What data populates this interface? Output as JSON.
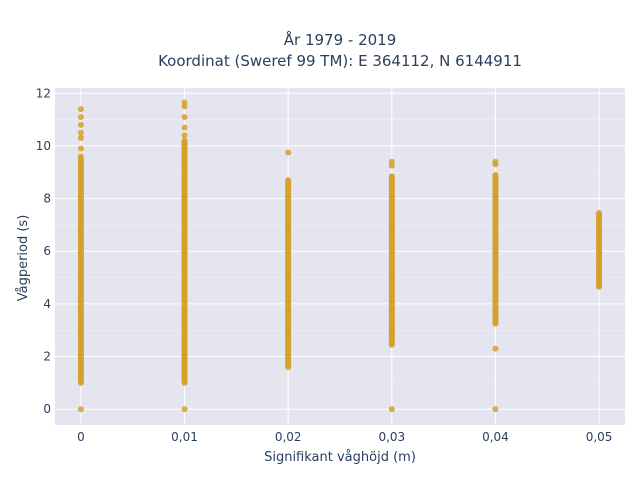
{
  "chart_data": {
    "type": "scatter",
    "title_lines": [
      "År 1979 - 2019",
      "Koordinat (Sweref 99 TM): E 364112, N 6144911"
    ],
    "xlabel": "Signifikant våghöjd (m)",
    "ylabel": "Vågperiod (s)",
    "xlim": [
      -0.0025,
      0.0525
    ],
    "ylim": [
      -0.6,
      12.2
    ],
    "x_ticks": [
      0,
      0.01,
      0.02,
      0.03,
      0.04,
      0.05
    ],
    "x_tick_labels": [
      "0",
      "0,01",
      "0,02",
      "0,03",
      "0,04",
      "0,05"
    ],
    "y_ticks": [
      0,
      2,
      4,
      6,
      8,
      10,
      12
    ],
    "y_tick_labels": [
      "0",
      "2",
      "4",
      "6",
      "8",
      "10",
      "12"
    ],
    "grid": true,
    "marker_color": "#d4a12a",
    "plot_background": "#e5e5ef",
    "series": [
      {
        "x": 0,
        "range": [
          1.0,
          9.5
        ],
        "outliers": [
          0,
          9.6,
          9.9,
          10.3,
          10.5,
          10.8,
          11.1,
          11.4
        ]
      },
      {
        "x": 0.01,
        "range": [
          1.0,
          10.2
        ],
        "outliers": [
          0,
          10.4,
          10.7,
          11.1,
          11.5,
          11.65
        ]
      },
      {
        "x": 0.02,
        "range": [
          1.6,
          8.7
        ],
        "outliers": [
          9.75
        ]
      },
      {
        "x": 0.03,
        "range": [
          2.45,
          8.85
        ],
        "outliers": [
          0,
          9.25,
          9.4
        ]
      },
      {
        "x": 0.04,
        "range": [
          3.25,
          8.9
        ],
        "outliers": [
          0,
          2.3,
          9.3,
          9.4
        ]
      },
      {
        "x": 0.05,
        "range": [
          4.65,
          7.45
        ],
        "outliers": []
      }
    ]
  }
}
